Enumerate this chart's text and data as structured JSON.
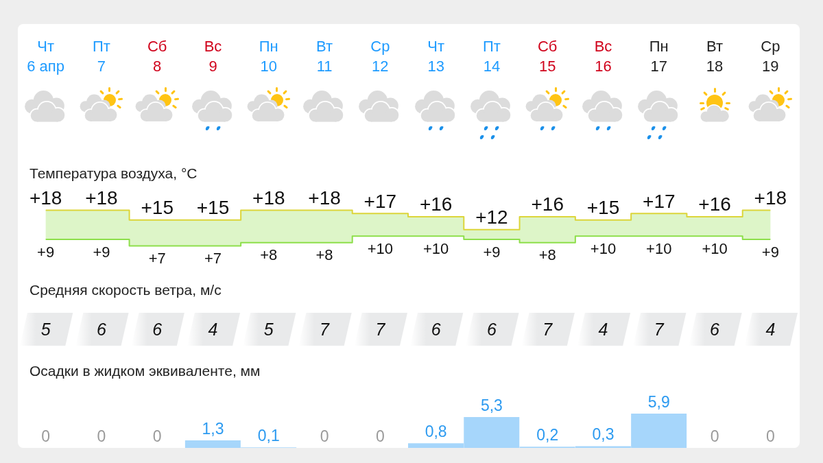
{
  "chart_data": [
    {
      "type": "step",
      "title": "Температура воздуха, °C",
      "categories": [
        "Чт\n6 апр",
        "Пт\n7",
        "Сб\n8",
        "Вс\n9",
        "Пн\n10",
        "Вт\n11",
        "Ср\n12",
        "Чт\n13",
        "Пт\n14",
        "Сб\n15",
        "Вс\n16",
        "Пн\n17",
        "Вт\n18",
        "Ср\n19"
      ],
      "tick_labels": "x",
      "series": [
        {
          "color": "#dcd53a",
          "values": [
            18,
            18,
            15,
            15,
            18,
            18,
            17,
            16,
            12,
            16,
            15,
            17,
            16,
            18
          ],
          "value_labels": [
            "+18",
            "+18",
            "+15",
            "+15",
            "+18",
            "+18",
            "+17",
            "+16",
            "+12",
            "+16",
            "+15",
            "+17",
            "+16",
            "+18"
          ]
        },
        {
          "color": "#8ddf4a",
          "values": [
            9,
            9,
            7,
            7,
            8,
            8,
            10,
            10,
            9,
            8,
            10,
            10,
            10,
            9
          ],
          "value_labels": [
            "+9",
            "+9",
            "+7",
            "+7",
            "+8",
            "+8",
            "+10",
            "+10",
            "+9",
            "+8",
            "+10",
            "+10",
            "+10",
            "+9"
          ],
          "lower": [
            9,
            9,
            7,
            7,
            8,
            8,
            10,
            10,
            9,
            8,
            10,
            10,
            10,
            9
          ],
          "upper": [
            18,
            18,
            15,
            15,
            18,
            18,
            17,
            16,
            12,
            16,
            15,
            17,
            16,
            18
          ]
        }
      ]
    },
    {
      "type": "other",
      "title": "Средняя скорость ветра, м/с",
      "values": [
        5,
        6,
        6,
        4,
        5,
        7,
        7,
        6,
        6,
        7,
        4,
        7,
        6,
        4
      ],
      "data_labels": true,
      "color": "#e9eaeb"
    },
    {
      "type": "bar",
      "title": "Осадки в жидком эквиваленте, мм",
      "categories": [
        null,
        null,
        null,
        null,
        null,
        null,
        null,
        null,
        null,
        null,
        null,
        null,
        null,
        null
      ],
      "values": [
        0,
        0,
        0,
        1.3,
        0.1,
        0,
        0,
        0.8,
        5.3,
        0.2,
        0.3,
        5.9,
        0,
        0
      ],
      "value_labels": [
        "0",
        "0",
        "0",
        "1,3",
        "0,1",
        "0",
        "0",
        "0,8",
        "5,3",
        "0,2",
        "0,3",
        "5,9",
        "0",
        "0"
      ],
      "color": "#a6d6fb"
    }
  ]
}
